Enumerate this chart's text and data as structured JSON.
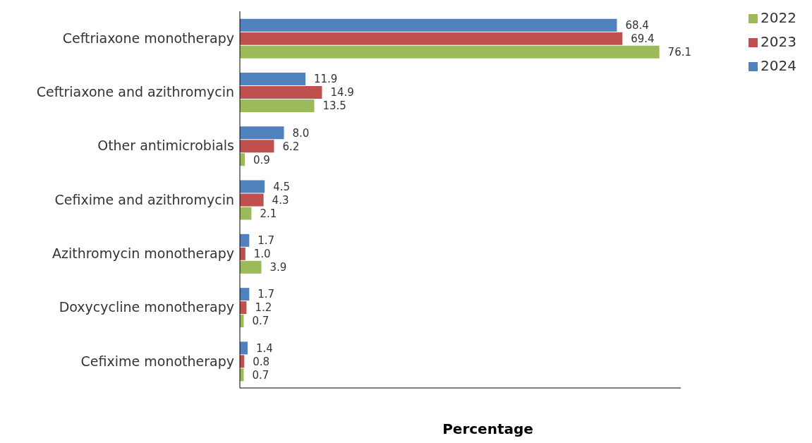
{
  "chart_data": {
    "type": "bar",
    "orientation": "horizontal",
    "xlabel": "Percentage",
    "categories": [
      "Ceftriaxone monotherapy",
      "Ceftriaxone and azithromycin",
      "Other antimicrobials",
      "Cefixime and azithromycin",
      "Azithromycin monotherapy",
      "Doxycycline monotherapy",
      "Cefixime monotherapy"
    ],
    "series": [
      {
        "name": "2024",
        "color": "#4f81bd",
        "values": [
          68.4,
          11.9,
          8.0,
          4.5,
          1.7,
          1.7,
          1.4
        ],
        "value_labels": [
          "68.4",
          "11.9",
          "8.0",
          "4.5",
          "1.7",
          "1.7",
          "1.4"
        ]
      },
      {
        "name": "2023",
        "color": "#c0504d",
        "values": [
          69.4,
          14.9,
          6.2,
          4.3,
          1.0,
          1.2,
          0.8
        ],
        "value_labels": [
          "69.4",
          "14.9",
          "6.2",
          "4.3",
          "1.0",
          "1.2",
          "0.8"
        ]
      },
      {
        "name": "2022",
        "color": "#9bbb59",
        "values": [
          76.1,
          13.5,
          0.9,
          2.1,
          3.9,
          0.7,
          0.7
        ],
        "value_labels": [
          "76.1",
          "13.5",
          "0.9",
          "2.1",
          "3.9",
          "0.7",
          "0.7"
        ]
      }
    ],
    "tick_labels": "y",
    "grid": false,
    "legend": "top right"
  }
}
